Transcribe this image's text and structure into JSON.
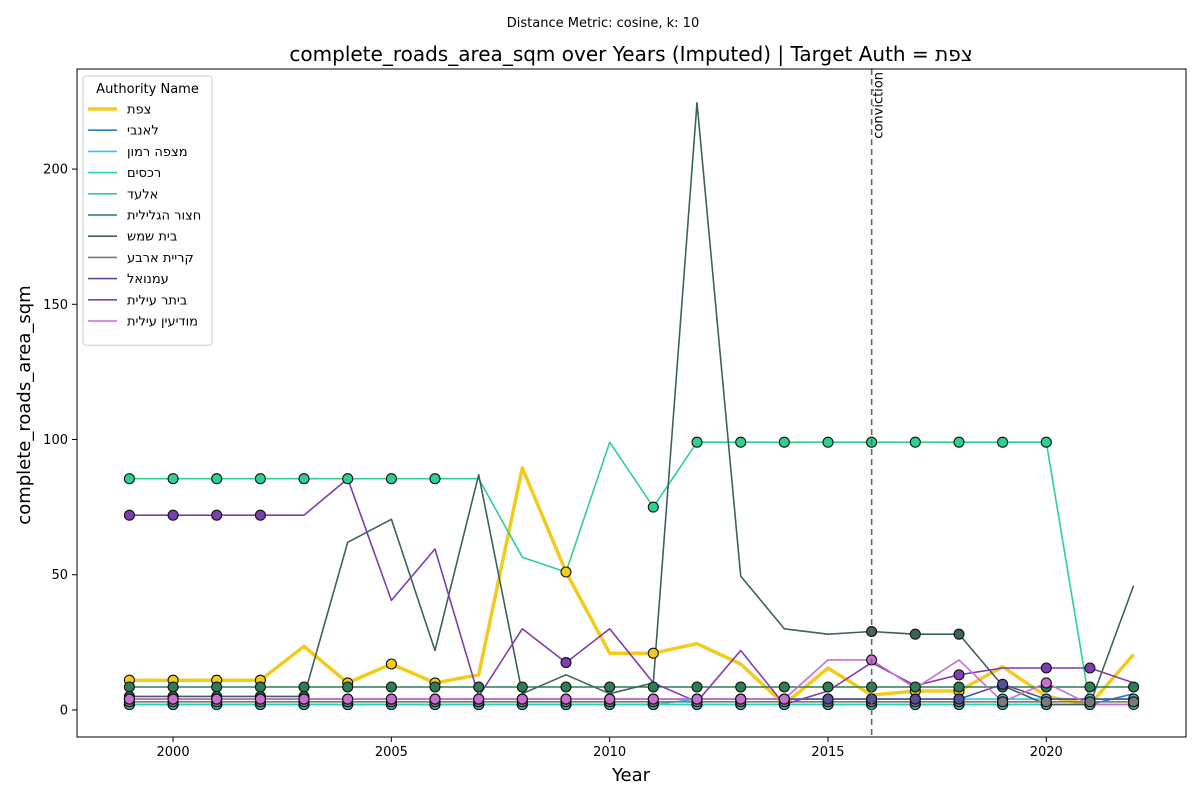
{
  "suptitle": "Distance Metric: cosine, k: 10",
  "chart_data": {
    "type": "line",
    "title": "complete_roads_area_sqm over Years (Imputed) | Target Auth = צפת",
    "xlabel": "Year",
    "ylabel": "complete_roads_area_sqm",
    "xlim": [
      1997.8,
      2023.2
    ],
    "ylim": [
      -10,
      237
    ],
    "x_ticks": [
      2000,
      2005,
      2010,
      2015,
      2020
    ],
    "y_ticks": [
      0,
      50,
      100,
      150,
      200
    ],
    "grid": false,
    "legend_title": "Authority Name",
    "legend_position": "upper-left",
    "vline": {
      "x": 2016,
      "label": "conviction"
    },
    "x": [
      1999,
      2000,
      2001,
      2002,
      2003,
      2004,
      2005,
      2006,
      2007,
      2008,
      2009,
      2010,
      2011,
      2012,
      2013,
      2014,
      2015,
      2016,
      2017,
      2018,
      2019,
      2020,
      2021,
      2022
    ],
    "series": [
      {
        "name": "צפת",
        "color": "#f2cb1d",
        "width": 3.5,
        "values": [
          11,
          11,
          11,
          11,
          23.5,
          10,
          17,
          10,
          13,
          89.5,
          51,
          21,
          21,
          24.5,
          17,
          2,
          15.5,
          5.5,
          7,
          7,
          16,
          5,
          2,
          20.5
        ],
        "markers": [
          1999,
          2000,
          2001,
          2002,
          2004,
          2005,
          2006,
          2009,
          2011,
          2014,
          2017,
          2018,
          2021
        ]
      },
      {
        "name": "לאנבי",
        "color": "#1f7fc9",
        "width": 1.6,
        "values": [
          2,
          2,
          2,
          2,
          2,
          2,
          2,
          2,
          2,
          2,
          2,
          2,
          2,
          2,
          2,
          2,
          2,
          2,
          2,
          2,
          2,
          2,
          2,
          6
        ],
        "markers": [
          1999,
          2000,
          2001,
          2002,
          2003,
          2004,
          2005,
          2006,
          2007,
          2008,
          2009,
          2010,
          2011,
          2012,
          2013,
          2014,
          2015,
          2016,
          2017,
          2018,
          2019,
          2020,
          2021
        ]
      },
      {
        "name": "מצפה רמון",
        "color": "#29c8eb",
        "width": 1.6,
        "values": [
          2,
          2,
          2,
          2,
          2,
          2,
          2,
          2,
          2,
          2,
          2,
          2,
          2,
          4,
          4,
          4,
          4,
          4,
          4,
          4,
          4,
          4,
          4,
          4
        ],
        "markers": [
          1999,
          2000,
          2001,
          2002,
          2003,
          2004,
          2005,
          2006,
          2007,
          2008,
          2009,
          2010,
          2011,
          2012,
          2013,
          2014,
          2015,
          2016,
          2017,
          2018,
          2019,
          2020,
          2021,
          2022
        ]
      },
      {
        "name": "רכסים",
        "color": "#26d6c0",
        "width": 1.6,
        "values": [
          2,
          2,
          2,
          2,
          2,
          2,
          2,
          2,
          2,
          2,
          2,
          2,
          2,
          2,
          2,
          2,
          2,
          2,
          2,
          2,
          2,
          2,
          2,
          2
        ],
        "markers": [
          1999,
          2000,
          2001,
          2002,
          2003,
          2004,
          2005,
          2006,
          2007,
          2008,
          2009,
          2010,
          2011,
          2012,
          2013,
          2014,
          2015,
          2016,
          2017,
          2018,
          2019,
          2020,
          2021,
          2022
        ]
      },
      {
        "name": "אלעד",
        "color": "#2fd08f",
        "width": 1.6,
        "values": [
          85.5,
          85.5,
          85.5,
          85.5,
          85.5,
          85.5,
          85.5,
          85.5,
          85.5,
          56.5,
          51,
          99,
          75,
          99,
          99,
          99,
          99,
          99,
          99,
          99,
          99,
          99,
          2,
          2
        ],
        "markers": [
          1999,
          2000,
          2001,
          2002,
          2003,
          2004,
          2005,
          2006,
          2011,
          2012,
          2013,
          2014,
          2015,
          2016,
          2017,
          2018,
          2019,
          2020
        ]
      },
      {
        "name": "חצור הגלילית",
        "color": "#2e7d55",
        "width": 1.6,
        "values": [
          8.5,
          8.5,
          8.5,
          8.5,
          8.5,
          8.5,
          8.5,
          8.5,
          8.5,
          8.5,
          8.5,
          8.5,
          8.5,
          8.5,
          8.5,
          8.5,
          8.5,
          8.5,
          8.5,
          8.5,
          8.5,
          8.5,
          8.5,
          8.5
        ],
        "markers": [
          1999,
          2000,
          2001,
          2002,
          2003,
          2004,
          2005,
          2006,
          2007,
          2008,
          2009,
          2010,
          2011,
          2012,
          2013,
          2014,
          2015,
          2016,
          2017,
          2018,
          2019,
          2020,
          2021,
          2022
        ]
      },
      {
        "name": "בית שמש",
        "color": "#3d6358",
        "width": 1.6,
        "values": [
          5,
          5,
          5,
          5,
          5,
          62,
          70.5,
          22,
          87,
          6,
          13,
          6,
          10,
          224.5,
          49.5,
          30,
          28,
          29,
          28,
          28,
          9,
          2,
          2,
          46
        ],
        "markers": [
          1999,
          2000,
          2001,
          2002,
          2003,
          2016,
          2017,
          2018
        ]
      },
      {
        "name": "קריית ארבע",
        "color": "#7a7a7a",
        "width": 1.6,
        "values": [
          3,
          3,
          3,
          3,
          3,
          3,
          3,
          3,
          3,
          3,
          3,
          3,
          3,
          3,
          3,
          3,
          3,
          3,
          3,
          3,
          3,
          3,
          3,
          3
        ],
        "markers": [
          1999,
          2000,
          2001,
          2002,
          2003,
          2004,
          2005,
          2006,
          2007,
          2008,
          2009,
          2010,
          2011,
          2012,
          2013,
          2014,
          2015,
          2016,
          2017,
          2018,
          2019,
          2020,
          2021,
          2022
        ]
      },
      {
        "name": "עמנואל",
        "color": "#554e9a",
        "width": 1.6,
        "values": [
          4,
          4,
          4,
          4,
          4,
          4,
          4,
          4,
          4,
          4,
          4,
          4,
          4,
          4,
          4,
          4,
          4,
          4,
          4,
          4,
          9.5,
          4,
          4,
          4
        ],
        "markers": [
          1999,
          2000,
          2001,
          2002,
          2003,
          2004,
          2005,
          2006,
          2007,
          2008,
          2009,
          2010,
          2011,
          2012,
          2013,
          2014,
          2015,
          2016,
          2017,
          2018,
          2019
        ]
      },
      {
        "name": "ביתר עילית",
        "color": "#7c3fae",
        "width": 1.6,
        "values": [
          72,
          72,
          72,
          72,
          72,
          85.5,
          40.5,
          59.5,
          5,
          30,
          17.5,
          30,
          10,
          3,
          22,
          2,
          7,
          17.5,
          9,
          13,
          15.5,
          15.5,
          15.5,
          10
        ],
        "markers": [
          1999,
          2000,
          2001,
          2002,
          2009,
          2018,
          2020,
          2021
        ]
      },
      {
        "name": "מודיעין עילית",
        "color": "#c86fd0",
        "width": 1.6,
        "values": [
          4,
          4,
          4,
          4,
          4,
          4,
          4,
          4,
          4,
          4,
          4,
          4,
          4,
          4,
          4,
          4,
          18.5,
          18.5,
          8,
          18.5,
          3,
          10,
          2,
          2
        ],
        "markers": [
          1999,
          2000,
          2001,
          2002,
          2003,
          2004,
          2005,
          2006,
          2007,
          2008,
          2009,
          2010,
          2011,
          2012,
          2013,
          2014,
          2016,
          2020
        ]
      }
    ]
  }
}
